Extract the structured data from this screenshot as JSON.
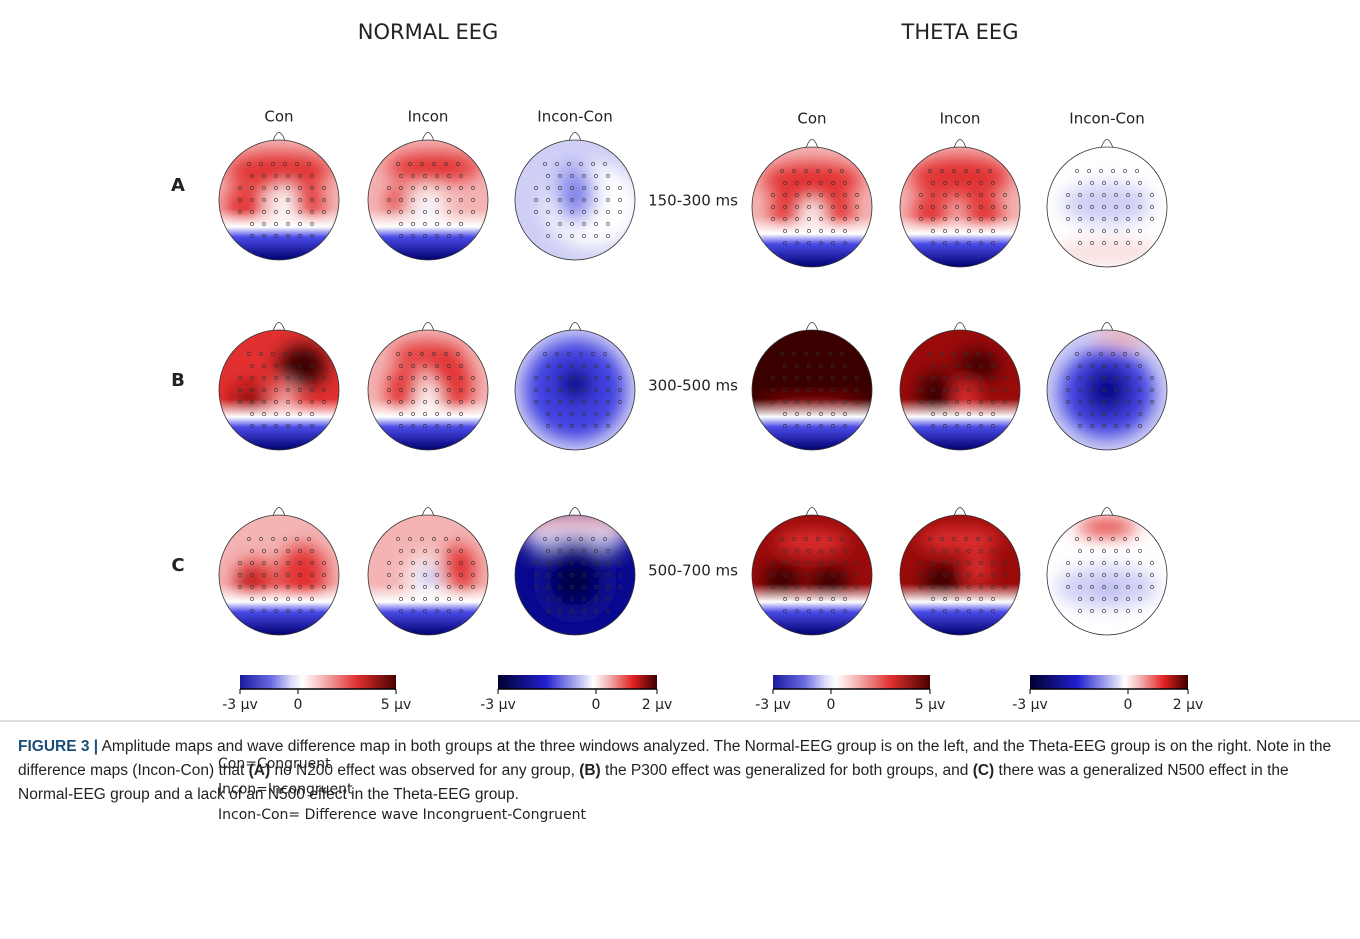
{
  "groups": [
    {
      "title": "NORMAL EEG",
      "columns": [
        "Con",
        "Incon",
        "Incon-Con"
      ]
    },
    {
      "title": "THETA EEG",
      "columns": [
        "Con",
        "Incon",
        "Incon-Con"
      ]
    }
  ],
  "rows": [
    {
      "label": "A",
      "window": "150-300 ms"
    },
    {
      "label": "B",
      "window": "300-500 ms"
    },
    {
      "label": "C",
      "window": "500-700 ms"
    }
  ],
  "colorbars": [
    {
      "labels": [
        "-3 µv",
        "0",
        "5 µv"
      ]
    },
    {
      "labels": [
        "-3 µv",
        "0",
        "2 µv"
      ]
    },
    {
      "labels": [
        "-3 µv",
        "0",
        "5 µv"
      ]
    },
    {
      "labels": [
        "-3 µv",
        "0",
        "2 µv"
      ]
    }
  ],
  "legend": [
    "Con=Congruent",
    "Incon=Incongruent",
    "Incon-Con= Difference wave Incongruent-Congruent"
  ],
  "caption": {
    "label": "FIGURE 3 |",
    "segments": [
      " Amplitude maps and wave difference map in both groups at the three windows analyzed. The Normal-EEG group is on the left, and the Theta-EEG group is on the right. Note in the difference maps (Incon-Con) that ",
      "(A)",
      " no N200 effect was observed for any group, ",
      "(B)",
      " the P300 effect was generalized for both groups, and ",
      "(C)",
      " there was a generalized N500 effect in the Normal-EEG group and a lack of an N500 effect in the Theta-EEG group."
    ]
  }
}
